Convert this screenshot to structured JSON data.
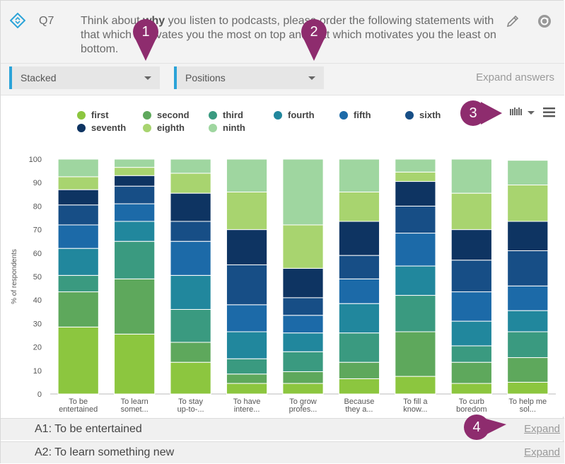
{
  "question": {
    "number": "Q7",
    "text_before_bold": "Think about ",
    "text_bold": "why",
    "text_after_bold": " you listen to podcasts, please order the following statements with that which motivates you the most on top and that which motivates you the least on bottom."
  },
  "controls": {
    "chart_type": "Stacked",
    "measure": "Positions",
    "expand_answers": "Expand answers"
  },
  "annotations": [
    "1",
    "2",
    "3",
    "4"
  ],
  "answers": [
    {
      "label": "A1: To be entertained",
      "expand": "Expand"
    },
    {
      "label": "A2: To learn something new",
      "expand": "Expand"
    }
  ],
  "colors": {
    "accent": "#2ba3d8",
    "annotation": "#8e2c6e"
  },
  "chart_data": {
    "type": "bar",
    "stacked": true,
    "ylabel": "% of respondents",
    "ylim": [
      0,
      100
    ],
    "yticks": [
      0,
      10,
      20,
      30,
      40,
      50,
      60,
      70,
      80,
      90,
      100
    ],
    "grid": false,
    "legend_position": "top",
    "categories": [
      "To be entertained",
      "To learn somet...",
      "To stay up-to-...",
      "To have intere...",
      "To grow profes...",
      "Because they a...",
      "To fill a know...",
      "To curb boredom",
      "To help me sol..."
    ],
    "category_lines": [
      [
        "To be",
        "entertained"
      ],
      [
        "To learn",
        "somet..."
      ],
      [
        "To stay",
        "up-to-..."
      ],
      [
        "To have",
        "intere..."
      ],
      [
        "To grow",
        "profes..."
      ],
      [
        "Because",
        "they a..."
      ],
      [
        "To fill a",
        "know..."
      ],
      [
        "To curb",
        "boredom"
      ],
      [
        "To help me",
        "sol..."
      ]
    ],
    "series": [
      {
        "name": "first",
        "color": "#8cc63f",
        "values": [
          28.5,
          25.5,
          13.5,
          4.5,
          4.5,
          6.5,
          7.5,
          4.5,
          5.0
        ]
      },
      {
        "name": "second",
        "color": "#5ea85c",
        "values": [
          15.0,
          23.5,
          8.5,
          4.0,
          5.0,
          7.0,
          19.0,
          9.0,
          10.5
        ]
      },
      {
        "name": "third",
        "color": "#3a9a80",
        "values": [
          7.0,
          16.0,
          14.0,
          6.5,
          8.5,
          12.5,
          15.5,
          7.0,
          11.0
        ]
      },
      {
        "name": "fourth",
        "color": "#21879d",
        "values": [
          11.5,
          8.5,
          14.5,
          11.5,
          8.0,
          12.5,
          12.5,
          10.5,
          9.0
        ]
      },
      {
        "name": "fifth",
        "color": "#1c6aa8",
        "values": [
          10.0,
          7.5,
          14.5,
          11.5,
          7.5,
          10.5,
          14.0,
          12.5,
          10.5
        ]
      },
      {
        "name": "sixth",
        "color": "#174e86",
        "values": [
          8.5,
          7.5,
          8.5,
          17.0,
          7.5,
          10.0,
          11.5,
          13.5,
          15.0
        ]
      },
      {
        "name": "seventh",
        "color": "#0e3462",
        "values": [
          6.5,
          4.5,
          12.0,
          15.0,
          12.5,
          14.5,
          10.5,
          13.0,
          12.5
        ]
      },
      {
        "name": "eighth",
        "color": "#a8d46f",
        "values": [
          5.5,
          3.5,
          8.5,
          16.0,
          18.5,
          12.5,
          4.0,
          15.5,
          15.5
        ]
      },
      {
        "name": "ninth",
        "color": "#9fd6a0",
        "values": [
          7.5,
          3.5,
          6.0,
          14.0,
          28.0,
          14.0,
          5.5,
          14.5,
          10.5
        ]
      }
    ]
  }
}
